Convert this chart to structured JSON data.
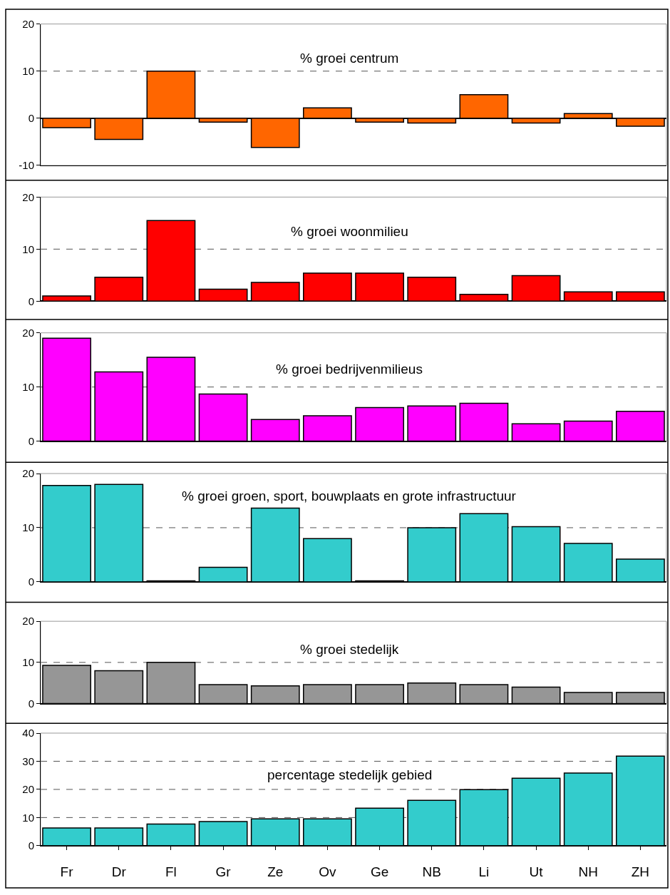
{
  "chart_data": [
    {
      "type": "bar",
      "title": "% groei centrum",
      "categories": [
        null,
        null,
        null,
        null,
        null,
        null,
        null,
        null,
        null,
        null,
        null,
        null
      ],
      "values": [
        -2,
        -4.5,
        10,
        -0.8,
        -6.2,
        2.2,
        -0.8,
        -1,
        5,
        -1,
        1,
        -1.7
      ],
      "color": "#ff6600",
      "ylim": [
        -10,
        20
      ],
      "yticks": [
        -10,
        0,
        10,
        20
      ],
      "ref_lines": [
        {
          "axis": "y",
          "value": 10,
          "line_style": "dashed",
          "color": "#555555"
        }
      ],
      "tick_labels": "y"
    },
    {
      "type": "bar",
      "title": "% groei woonmilieu",
      "categories": [
        null,
        null,
        null,
        null,
        null,
        null,
        null,
        null,
        null,
        null,
        null,
        null
      ],
      "values": [
        1,
        4.6,
        15.5,
        2.3,
        3.6,
        5.4,
        5.4,
        4.6,
        1.3,
        4.9,
        1.8,
        1.8
      ],
      "color": "#ff0000",
      "ylim": [
        0,
        20
      ],
      "yticks": [
        0,
        10,
        20
      ],
      "ref_lines": [
        {
          "axis": "y",
          "value": 10,
          "line_style": "dashed",
          "color": "#555555"
        }
      ],
      "tick_labels": "y"
    },
    {
      "type": "bar",
      "title": "% groei bedrijvenmilieus",
      "categories": [
        null,
        null,
        null,
        null,
        null,
        null,
        null,
        null,
        null,
        null,
        null,
        null
      ],
      "values": [
        19,
        12.8,
        15.5,
        8.7,
        4,
        4.7,
        6.2,
        6.5,
        7,
        3.2,
        3.7,
        5.5
      ],
      "color": "#ff00ff",
      "ylim": [
        0,
        20
      ],
      "yticks": [
        0,
        10,
        20
      ],
      "ref_lines": [
        {
          "axis": "y",
          "value": 10,
          "line_style": "dashed",
          "color": "#555555"
        }
      ],
      "tick_labels": "y"
    },
    {
      "type": "bar",
      "title": "% groei groen, sport, bouwplaats en grote infrastructuur",
      "categories": [
        null,
        null,
        null,
        null,
        null,
        null,
        null,
        null,
        null,
        null,
        null,
        null
      ],
      "values": [
        17.8,
        18,
        0.2,
        2.7,
        13.6,
        8,
        0.2,
        10,
        12.6,
        10.2,
        7.1,
        4.2
      ],
      "color": "#33cccc",
      "ylim": [
        0,
        20
      ],
      "yticks": [
        0,
        10,
        20
      ],
      "ref_lines": [
        {
          "axis": "y",
          "value": 10,
          "line_style": "dashed",
          "color": "#555555"
        }
      ],
      "tick_labels": "y"
    },
    {
      "type": "bar",
      "title": "% groei stedelijk",
      "categories": [
        null,
        null,
        null,
        null,
        null,
        null,
        null,
        null,
        null,
        null,
        null,
        null
      ],
      "values": [
        9.3,
        8,
        10,
        4.6,
        4.3,
        4.6,
        4.6,
        5,
        4.6,
        4,
        2.7,
        2.7
      ],
      "color": "#969696",
      "ylim": [
        0,
        20
      ],
      "yticks": [
        0,
        10,
        20
      ],
      "ref_lines": [
        {
          "axis": "y",
          "value": 10,
          "line_style": "dashed",
          "color": "#555555"
        }
      ],
      "tick_labels": "y"
    },
    {
      "type": "bar",
      "title": "percentage stedelijk gebied",
      "categories": [
        "Fr",
        "Dr",
        "Fl",
        "Gr",
        "Ze",
        "Ov",
        "Ge",
        "NB",
        "Li",
        "Ut",
        "NH",
        "ZH"
      ],
      "values": [
        6.3,
        6.3,
        7.7,
        8.6,
        9.5,
        9.5,
        13.3,
        16.1,
        19.9,
        24,
        25.8,
        31.8
      ],
      "color": "#33cccc",
      "ylim": [
        0,
        40
      ],
      "yticks": [
        0,
        10,
        20,
        30,
        40
      ],
      "ref_lines": [
        {
          "axis": "y",
          "value": 10,
          "line_style": "dashed",
          "color": "#555555"
        },
        {
          "axis": "y",
          "value": 20,
          "line_style": "dashed",
          "color": "#555555"
        },
        {
          "axis": "y",
          "value": 30,
          "line_style": "dashed",
          "color": "#555555"
        }
      ]
    }
  ]
}
